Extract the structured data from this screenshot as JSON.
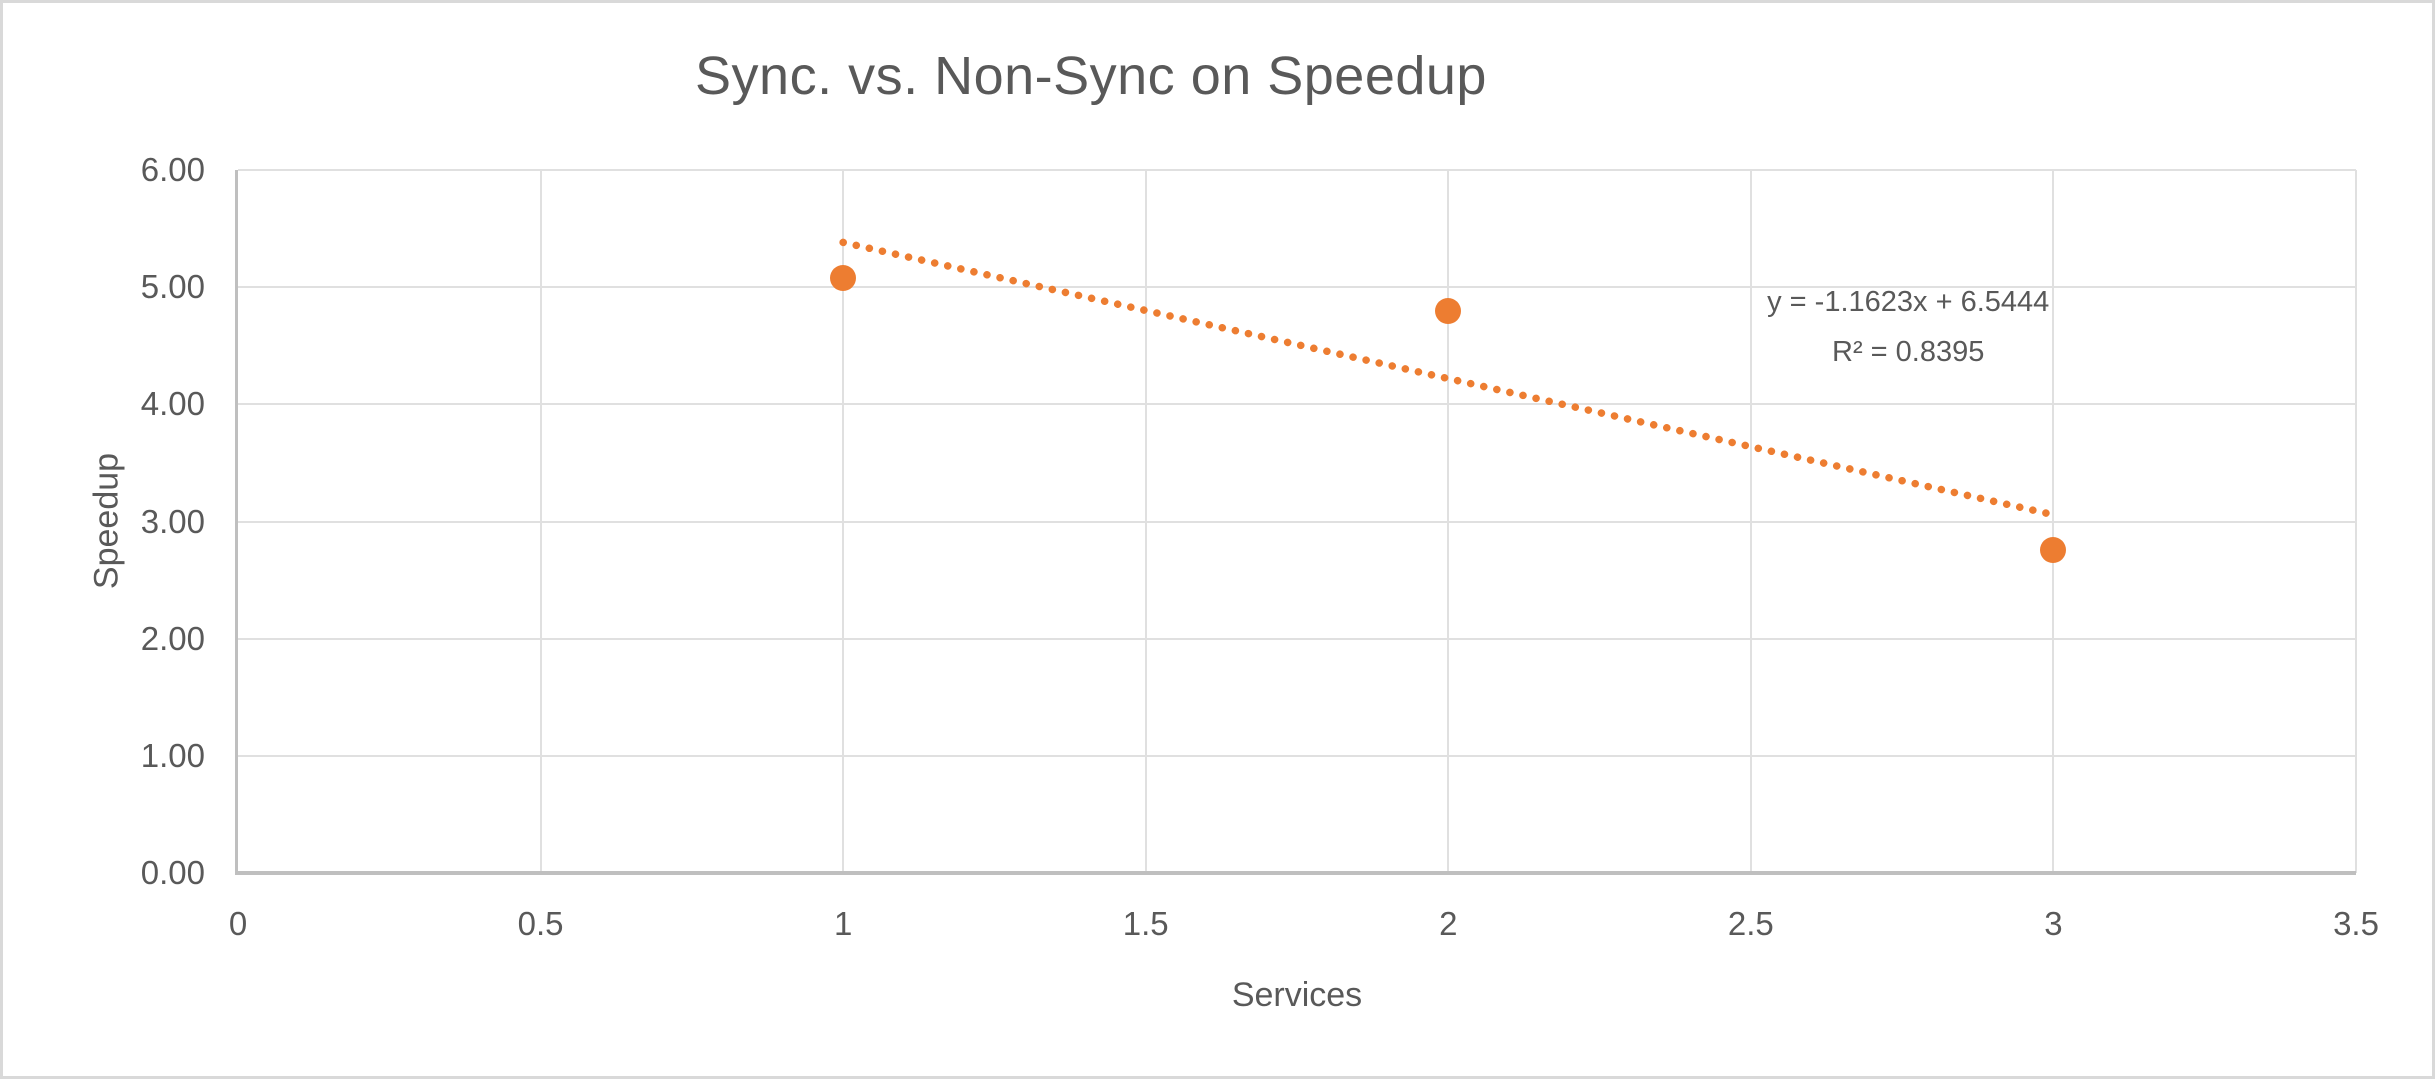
{
  "chart_data": {
    "type": "scatter",
    "title": "Sync. vs. Non-Sync on Speedup",
    "xlabel": "Services",
    "ylabel": "Speedup",
    "xlim": [
      0,
      3.5
    ],
    "ylim": [
      0,
      6
    ],
    "grid": true,
    "legend": "none",
    "x_ticks": {
      "values": [
        0,
        0.5,
        1,
        1.5,
        2,
        2.5,
        3,
        3.5
      ],
      "labels": [
        "0",
        "0.5",
        "1",
        "1.5",
        "2",
        "2.5",
        "3",
        "3.5"
      ]
    },
    "y_ticks": {
      "values": [
        0,
        1,
        2,
        3,
        4,
        5,
        6
      ],
      "labels": [
        "0.00",
        "1.00",
        "2.00",
        "3.00",
        "4.00",
        "5.00",
        "6.00"
      ]
    },
    "series": [
      {
        "name": "Speedup",
        "x": [
          1,
          2,
          3
        ],
        "y": [
          5.08,
          4.8,
          2.76
        ]
      }
    ],
    "trendline": {
      "type": "linear",
      "slope": -1.1623,
      "intercept": 6.5444,
      "x_range": [
        1,
        3
      ],
      "equation_label": "y = -1.1623x + 6.5444",
      "r2_label": "R² = 0.8395",
      "label_anchor": {
        "x": 2.76,
        "y": 4.66
      }
    },
    "colors": {
      "marker": "#ED7D31",
      "trendline": "#ED7D31",
      "text": "#595959",
      "gridline": "#E0E0E0",
      "axis_line": "#BFBFBF",
      "chart_border": "#D9D9D9"
    }
  }
}
